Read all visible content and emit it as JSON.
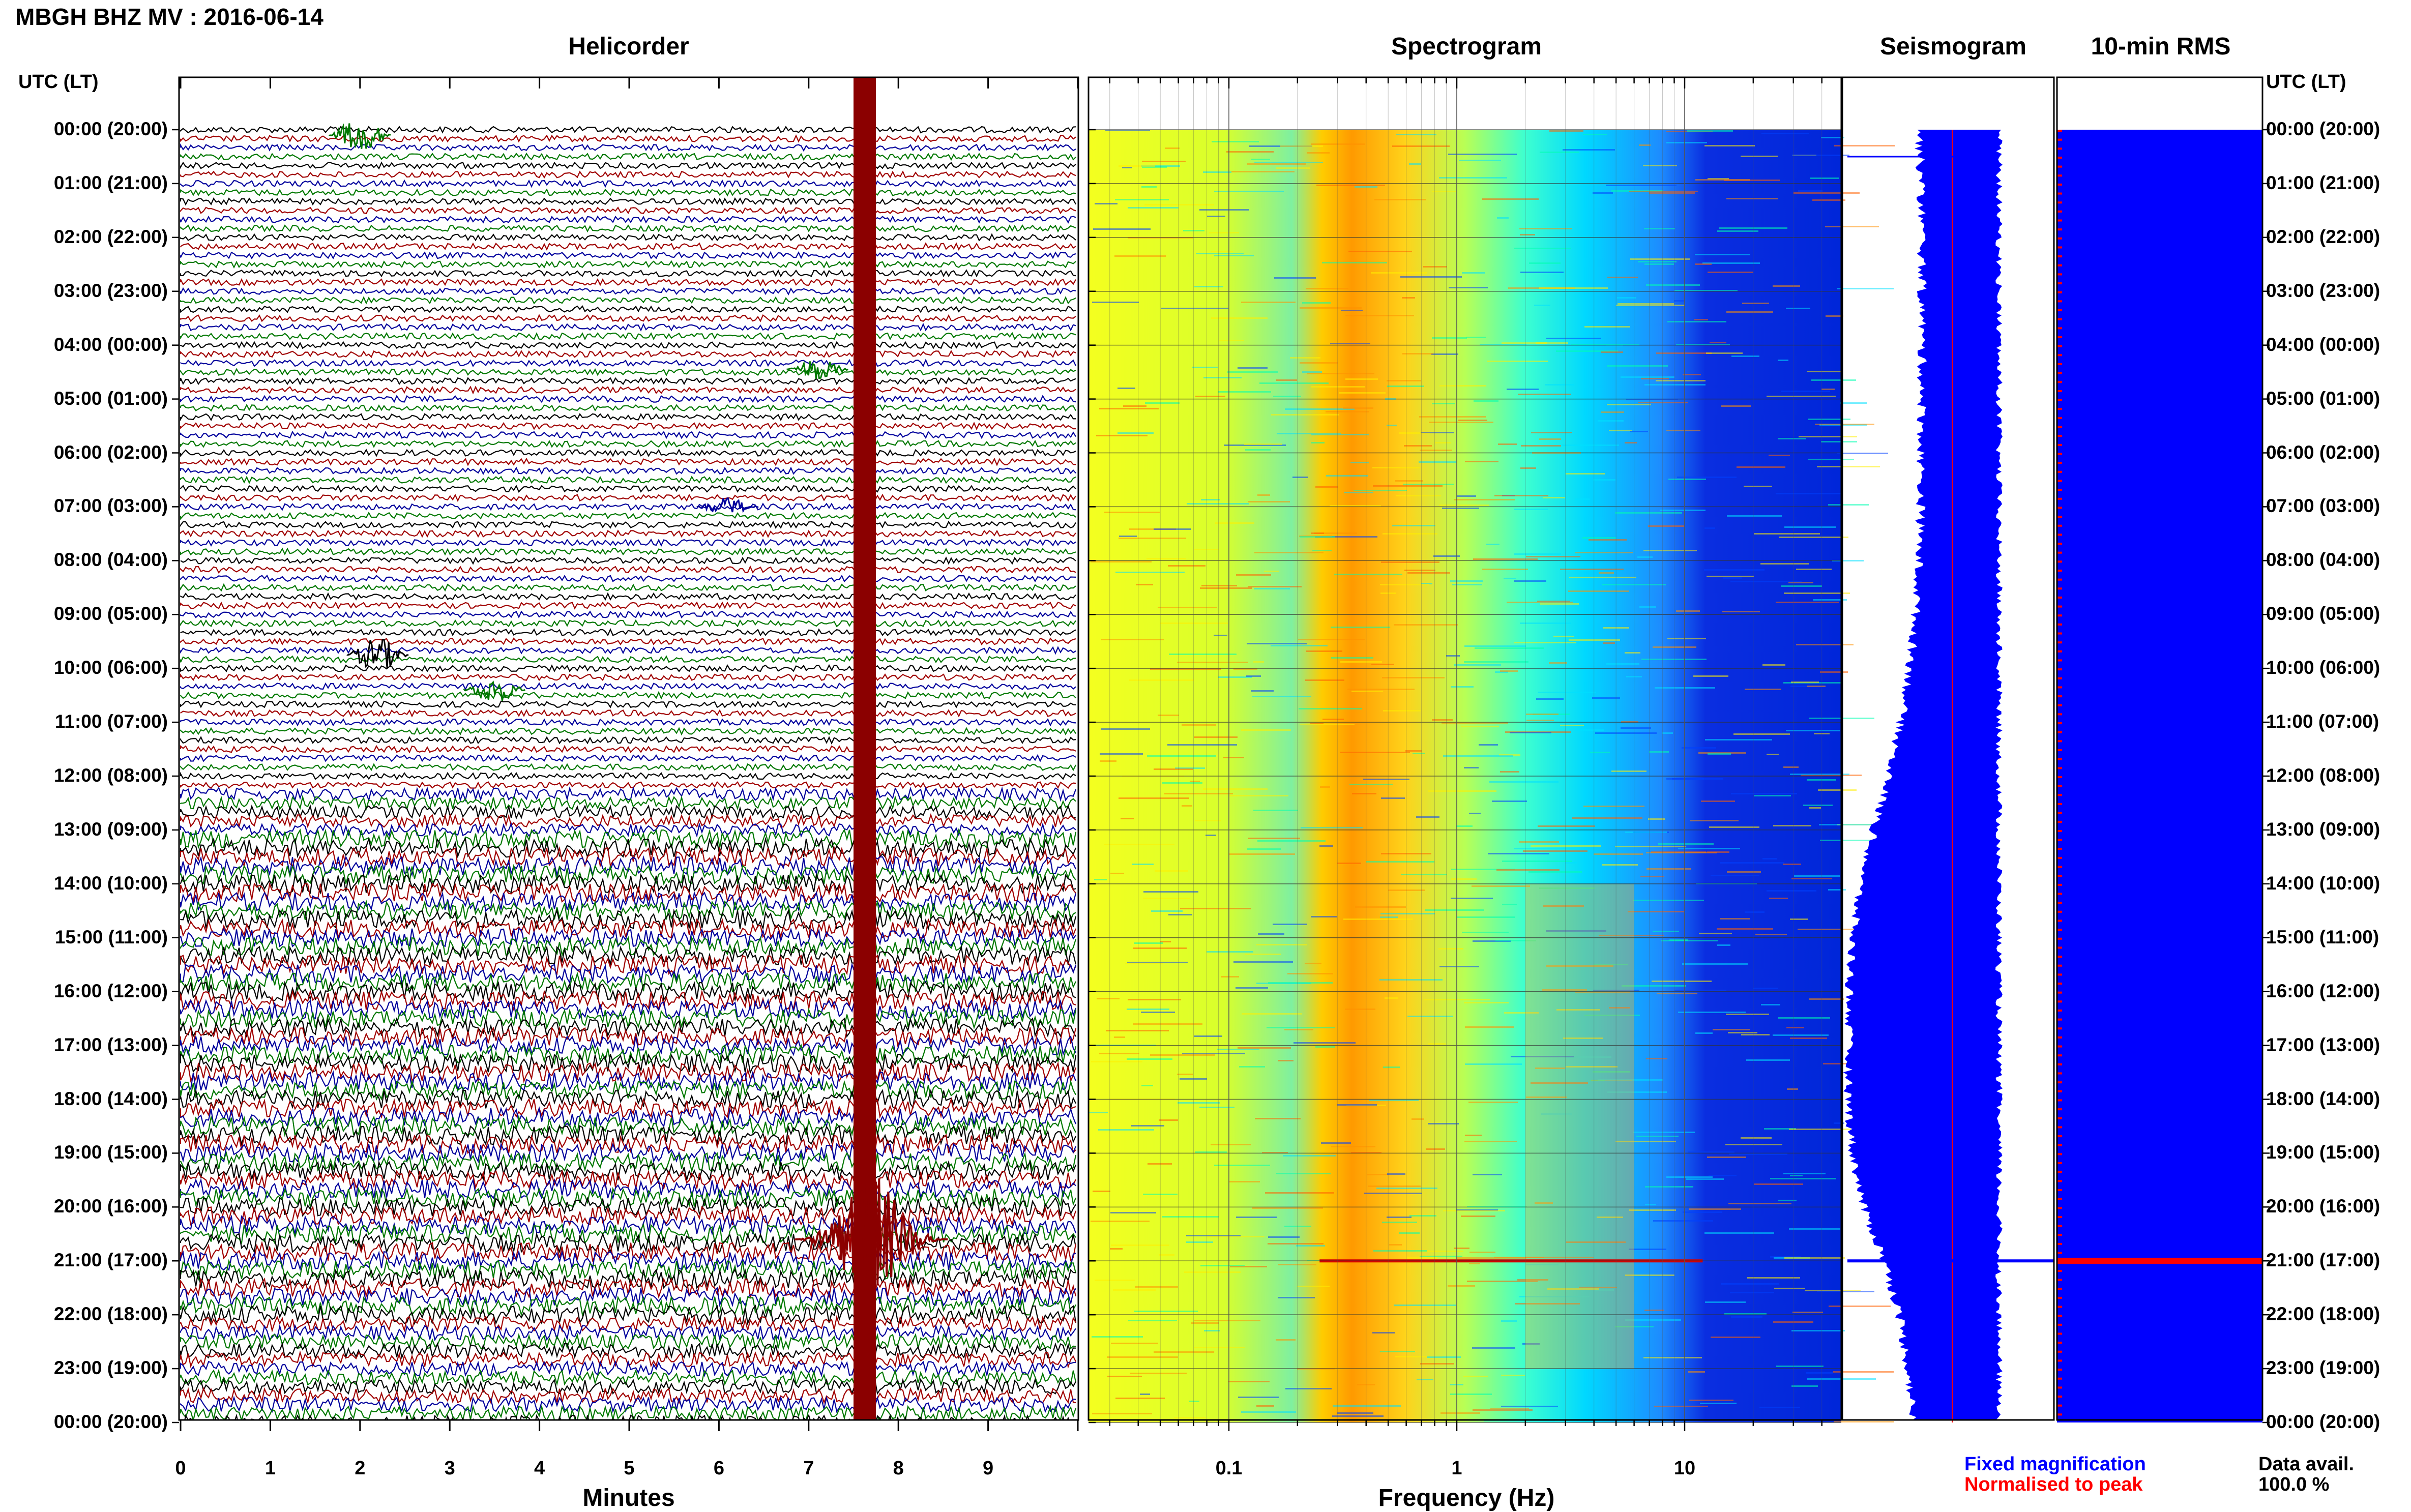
{
  "page_title": "MBGH BHZ MV : 2016-06-14",
  "panels": {
    "helicorder": "Helicorder",
    "spectrogram": "Spectrogram",
    "seismogram": "Seismogram",
    "rms": "10-min RMS"
  },
  "utc_header": "UTC (LT)",
  "time_labels": [
    "00:00 (20:00)",
    "01:00 (21:00)",
    "02:00 (22:00)",
    "03:00 (23:00)",
    "04:00 (00:00)",
    "05:00 (01:00)",
    "06:00 (02:00)",
    "07:00 (03:00)",
    "08:00 (04:00)",
    "09:00 (05:00)",
    "10:00 (06:00)",
    "11:00 (07:00)",
    "12:00 (08:00)",
    "13:00 (09:00)",
    "14:00 (10:00)",
    "15:00 (11:00)",
    "16:00 (12:00)",
    "17:00 (13:00)",
    "18:00 (14:00)",
    "19:00 (15:00)",
    "20:00 (16:00)",
    "21:00 (17:00)",
    "22:00 (18:00)",
    "23:00 (19:00)",
    "00:00 (20:00)"
  ],
  "x_axes": {
    "minutes": {
      "label": "Minutes",
      "ticks": [
        "0",
        "1",
        "2",
        "3",
        "4",
        "5",
        "6",
        "7",
        "8",
        "9"
      ]
    },
    "frequency": {
      "label": "Frequency (Hz)",
      "ticks": [
        "0.1",
        "1",
        "10"
      ]
    }
  },
  "legend": {
    "fixed": "Fixed magnification",
    "normalised": "Normalised to peak",
    "fixed_color": "#0000ff",
    "normalised_color": "#ff0000"
  },
  "data_avail": {
    "label": "Data avail.",
    "value": "100.0 %"
  },
  "colors": {
    "trace_cycle": [
      "#000000",
      "#a00000",
      "#00009c",
      "#007800"
    ],
    "event": "#8b0000",
    "seismogram": "#0000ff",
    "rms": "#0000ff"
  },
  "chart_data": [
    {
      "type": "line",
      "name": "helicorder",
      "xlabel": "Minutes",
      "xlim": [
        0,
        10
      ],
      "hours": 24,
      "lines_per_hour": 6,
      "events": [
        {
          "minute": 2.0,
          "hour": 0.1,
          "amp": 4,
          "color_index": 3
        },
        {
          "minute": 7.1,
          "hour": 4.45,
          "amp": 2.5,
          "color_index": 3
        },
        {
          "minute": 6.1,
          "hour": 7.0,
          "amp": 2,
          "color_index": 2
        },
        {
          "minute": 2.2,
          "hour": 9.75,
          "amp": 4,
          "color_index": 0
        },
        {
          "minute": 3.5,
          "hour": 10.4,
          "amp": 3,
          "color_index": 3
        },
        {
          "minute": 7.6,
          "hour": 20.5,
          "amp": 14,
          "color_index": 1
        }
      ],
      "tall_event": {
        "minute_start": 7.5,
        "minute_end": 7.75,
        "hour_start": 0,
        "hour_end": 24
      }
    },
    {
      "type": "heatmap",
      "name": "spectrogram",
      "xlabel": "Frequency (Hz)",
      "x_scale": "log",
      "xlim": [
        0.02,
        50
      ],
      "colormap": [
        "#ffff00",
        "#ffa500",
        "#ffd700",
        "#00e5ff",
        "#00bfff",
        "#0000cd"
      ]
    },
    {
      "type": "area",
      "name": "seismogram",
      "hours": [
        0,
        1,
        2,
        3,
        4,
        5,
        6,
        7,
        8,
        9,
        10,
        11,
        12,
        13,
        14,
        15,
        16,
        17,
        18,
        19,
        20,
        21,
        22,
        23,
        24
      ],
      "relative_amplitude": [
        0.3,
        0.28,
        0.27,
        0.27,
        0.27,
        0.27,
        0.28,
        0.28,
        0.3,
        0.33,
        0.38,
        0.47,
        0.58,
        0.72,
        0.85,
        0.92,
        0.95,
        0.96,
        0.96,
        0.92,
        0.82,
        0.62,
        0.48,
        0.4,
        0.35
      ]
    },
    {
      "type": "bar",
      "name": "10-min RMS",
      "orientation": "horizontal",
      "peak_hour": 21.0
    }
  ]
}
